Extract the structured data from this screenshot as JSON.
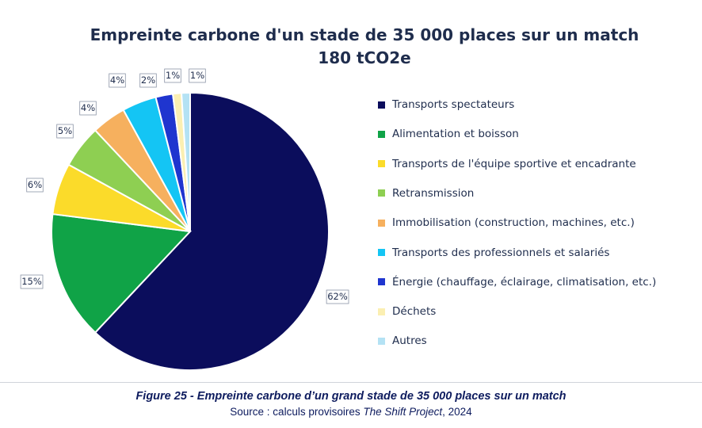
{
  "chart_data": {
    "type": "pie",
    "title": "Empreinte carbone d'un stade de 35 000 places sur un match",
    "subtitle": "180 tCO2e",
    "legend_position": "right",
    "slices": [
      {
        "label": "Transports spectateurs",
        "value": 62,
        "value_label": "62%",
        "color": "#0b0d5c"
      },
      {
        "label": "Alimentation et boisson",
        "value": 15,
        "value_label": "15%",
        "color": "#10a347"
      },
      {
        "label": "Transports de l'équipe sportive et encadrante",
        "value": 6,
        "value_label": "6%",
        "color": "#fbdb2a"
      },
      {
        "label": "Retransmission",
        "value": 5,
        "value_label": "5%",
        "color": "#8ecf52"
      },
      {
        "label": "Immobilisation (construction, machines, etc.)",
        "value": 4,
        "value_label": "4%",
        "color": "#f6b05e"
      },
      {
        "label": "Transports des professionnels et salariés",
        "value": 4,
        "value_label": "4%",
        "color": "#14c5f4"
      },
      {
        "label": "Énergie (chauffage, éclairage, climatisation, etc.)",
        "value": 2,
        "value_label": "2%",
        "color": "#1f35cf"
      },
      {
        "label": "Déchets",
        "value": 1,
        "value_label": "1%",
        "color": "#fbefb2"
      },
      {
        "label": "Autres",
        "value": 1,
        "value_label": "1%",
        "color": "#b4e2f4"
      }
    ]
  },
  "caption": {
    "figure_title": "Figure 25 - Empreinte carbone d’un grand stade de 35 000 places sur un match",
    "source_prefix": "Source : calculs provisoires ",
    "source_name": "The Shift Project",
    "source_suffix": ", 2024"
  }
}
